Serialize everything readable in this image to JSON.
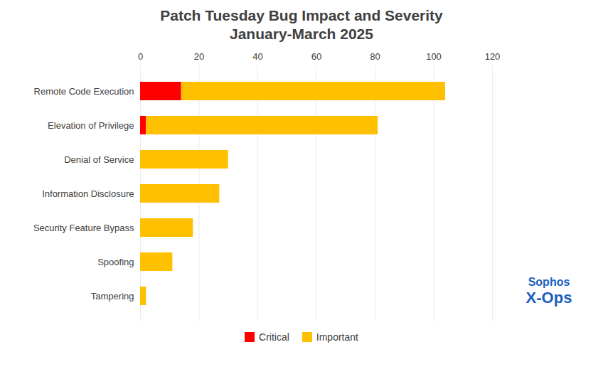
{
  "chart_data": {
    "type": "bar",
    "title": "Patch Tuesday Bug Impact and Severity",
    "subtitle": "January-March 2025",
    "orientation": "horizontal",
    "stacked": true,
    "categories": [
      "Remote Code Execution",
      "Elevation of Privilege",
      "Denial of Service",
      "Information Disclosure",
      "Security Feature Bypass",
      "Spoofing",
      "Tampering"
    ],
    "series": [
      {
        "name": "Critical",
        "color": "#FF0000",
        "values": [
          14,
          2,
          0,
          0,
          0,
          0,
          0
        ]
      },
      {
        "name": "Important",
        "color": "#FFC000",
        "values": [
          90,
          79,
          30,
          27,
          18,
          11,
          2
        ]
      }
    ],
    "xlim": [
      0,
      120
    ],
    "xticks": [
      0,
      20,
      40,
      60,
      80,
      100,
      120
    ],
    "grid": true,
    "legend": "bottom",
    "annotations": [
      {
        "text": "Sophos",
        "color": "#1B5EBE"
      },
      {
        "text": "X-Ops",
        "color": "#1B5EBE"
      }
    ]
  }
}
